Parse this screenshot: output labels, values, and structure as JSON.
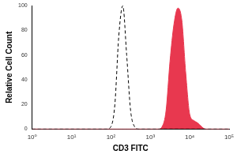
{
  "chart_data": {
    "type": "line",
    "x_label": "CD3 FITC",
    "y_label": "Relative Cell Count",
    "x": [
      1,
      10,
      50,
      63,
      79,
      100,
      126,
      158,
      200,
      251,
      316,
      398,
      501,
      631,
      794,
      1000,
      1259,
      1585,
      1995,
      2512,
      3162,
      3981,
      5012,
      6310,
      7943,
      10000,
      12589,
      15849,
      19953,
      25119,
      31623,
      100000
    ],
    "series": [
      {
        "type": "line",
        "line_style": "dashed",
        "color": "#000000",
        "values": [
          0,
          0,
          0,
          0,
          0,
          2,
          20,
          75,
          100,
          60,
          15,
          2,
          0,
          0,
          0,
          0,
          0,
          0,
          0,
          0,
          0,
          0,
          0,
          0,
          0,
          0,
          0,
          0,
          0,
          0,
          0,
          0
        ]
      },
      {
        "type": "area",
        "line_style": "solid",
        "color": "#e8384f",
        "values": [
          0,
          0,
          0,
          0,
          0,
          0,
          0,
          0,
          0,
          0,
          0,
          0,
          0,
          0,
          0,
          0,
          0,
          0,
          2,
          15,
          55,
          85,
          98,
          88,
          45,
          12,
          7,
          5,
          2,
          0,
          0,
          0
        ]
      }
    ],
    "log": "x",
    "xlim": [
      1,
      100000
    ],
    "xticks": [
      {
        "value": 1,
        "label": "10⁰"
      },
      {
        "value": 10,
        "label": "10¹"
      },
      {
        "value": 100,
        "label": "10²"
      },
      {
        "value": 1000,
        "label": "10³"
      },
      {
        "value": 10000,
        "label": "10⁴"
      },
      {
        "value": 100000,
        "label": "10⁵"
      }
    ],
    "ylim": [
      0,
      100
    ],
    "yticks": [
      0,
      20,
      40,
      60,
      80,
      100
    ],
    "grid": false
  }
}
